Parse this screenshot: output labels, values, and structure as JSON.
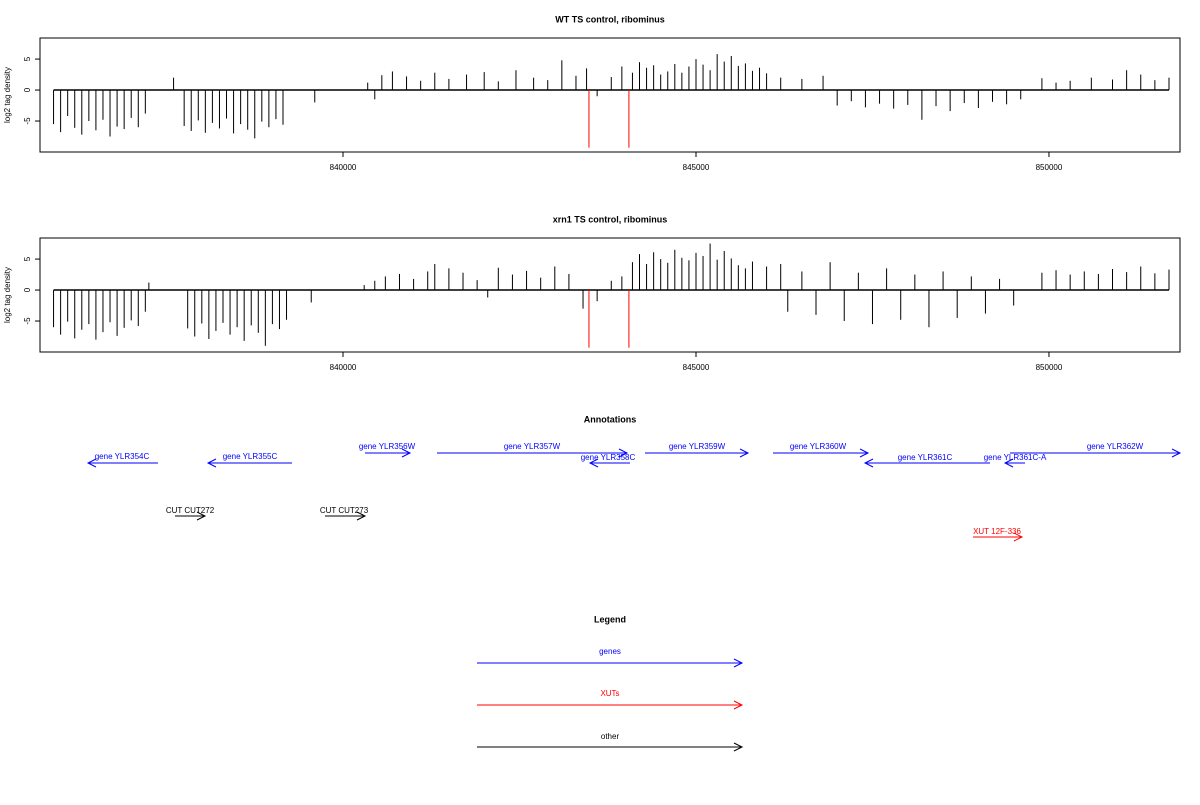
{
  "chart_data": [
    {
      "type": "bar",
      "title": "WT TS control, ribominus",
      "ylabel": "log2 tag density",
      "xlim": [
        835708,
        851856
      ],
      "ylim": [
        -10,
        8.4
      ],
      "xticks": [
        840000,
        845000,
        850000
      ],
      "yticks": [
        -5,
        0,
        5
      ],
      "series": [
        {
          "color": "#000000",
          "x": [
            835900,
            836000,
            836100,
            836200,
            836300,
            836400,
            836500,
            836600,
            836700,
            836800,
            836900,
            837000,
            837100,
            837200,
            837600,
            837750,
            837850,
            837950,
            838050,
            838150,
            838250,
            838350,
            838450,
            838550,
            838650,
            838750,
            838850,
            838950,
            839050,
            839150,
            839600,
            840350,
            840450,
            840550,
            840700,
            840900,
            841100,
            841300,
            841500,
            841750,
            842000,
            842200,
            842450,
            842700,
            842900,
            843100,
            843300,
            843450,
            843600,
            843800,
            843950,
            844100,
            844200,
            844300,
            844400,
            844500,
            844600,
            844700,
            844800,
            844900,
            845000,
            845100,
            845200,
            845300,
            845400,
            845500,
            845600,
            845700,
            845800,
            845900,
            846000,
            846200,
            846500,
            846800,
            847000,
            847200,
            847400,
            847600,
            847800,
            848000,
            848200,
            848400,
            848600,
            848800,
            849000,
            849200,
            849400,
            849600,
            849900,
            850100,
            850300,
            850600,
            850900,
            851100,
            851300,
            851500,
            851700
          ],
          "values": [
            -5.5,
            -6.8,
            -4.2,
            -6.1,
            -7.2,
            -5.0,
            -6.5,
            -4.8,
            -7.5,
            -5.9,
            -6.3,
            -4.5,
            -6.0,
            -3.8,
            2.0,
            -5.8,
            -6.6,
            -4.9,
            -6.9,
            -5.3,
            -6.2,
            -4.6,
            -7.0,
            -5.5,
            -6.4,
            -7.8,
            -5.1,
            -6.0,
            -4.7,
            -5.6,
            -2.0,
            1.2,
            -1.5,
            2.4,
            3.0,
            2.2,
            1.5,
            2.8,
            1.8,
            2.5,
            2.9,
            1.4,
            3.2,
            2.0,
            1.6,
            4.8,
            2.3,
            3.5,
            -1.0,
            2.1,
            3.8,
            2.8,
            4.5,
            3.6,
            4.0,
            2.5,
            3.0,
            4.2,
            2.8,
            3.8,
            5.0,
            4.1,
            3.2,
            5.8,
            4.6,
            5.5,
            3.9,
            4.3,
            3.1,
            3.6,
            2.7,
            2.0,
            1.8,
            2.3,
            -2.5,
            -1.8,
            -2.8,
            -2.2,
            -3.0,
            -2.4,
            -4.8,
            -2.6,
            -3.4,
            -2.1,
            -2.9,
            -1.9,
            -2.3,
            -1.5,
            1.9,
            1.2,
            1.5,
            2.0,
            1.7,
            3.2,
            2.5,
            1.6,
            2.0
          ]
        },
        {
          "color": "#ff0000",
          "x": [
            843484,
            844050
          ],
          "values": [
            -9.3,
            -9.3
          ]
        }
      ]
    },
    {
      "type": "bar",
      "title": "xrn1 TS control, ribominus",
      "ylabel": "log2 tag density",
      "xlim": [
        835708,
        851856
      ],
      "ylim": [
        -10,
        8.4
      ],
      "xticks": [
        840000,
        845000,
        850000
      ],
      "yticks": [
        -5,
        0,
        5
      ],
      "series": [
        {
          "color": "#000000",
          "x": [
            835900,
            836000,
            836100,
            836200,
            836300,
            836400,
            836500,
            836600,
            836700,
            836800,
            836900,
            837000,
            837100,
            837200,
            837250,
            837800,
            837900,
            838000,
            838100,
            838200,
            838300,
            838400,
            838500,
            838600,
            838700,
            838800,
            838900,
            839000,
            839100,
            839200,
            839550,
            840300,
            840450,
            840600,
            840800,
            841000,
            841200,
            841300,
            841500,
            841700,
            841900,
            842050,
            842200,
            842400,
            842600,
            842800,
            843000,
            843200,
            843400,
            843600,
            843800,
            843950,
            844100,
            844200,
            844300,
            844400,
            844500,
            844600,
            844700,
            844800,
            844900,
            845000,
            845100,
            845200,
            845300,
            845400,
            845500,
            845600,
            845700,
            845800,
            846000,
            846200,
            846300,
            846500,
            846700,
            846900,
            847100,
            847300,
            847500,
            847700,
            847900,
            848100,
            848300,
            848500,
            848700,
            848900,
            849100,
            849300,
            849500,
            849900,
            850100,
            850300,
            850500,
            850700,
            850900,
            851100,
            851300,
            851500,
            851700
          ],
          "values": [
            -6.0,
            -7.2,
            -5.1,
            -7.8,
            -6.4,
            -5.5,
            -8.0,
            -6.8,
            -5.2,
            -7.4,
            -6.1,
            -4.9,
            -5.8,
            -3.5,
            1.2,
            -6.2,
            -7.5,
            -5.4,
            -7.9,
            -6.6,
            -5.3,
            -7.2,
            -6.0,
            -8.2,
            -5.7,
            -6.9,
            -9.0,
            -5.5,
            -6.3,
            -4.8,
            -2.0,
            0.8,
            1.5,
            2.2,
            2.6,
            1.8,
            3.0,
            4.2,
            3.5,
            2.8,
            1.6,
            -1.2,
            3.6,
            2.5,
            3.1,
            2.0,
            3.8,
            2.6,
            -3.0,
            -1.8,
            1.5,
            2.2,
            4.5,
            5.8,
            4.2,
            6.1,
            5.0,
            4.4,
            6.5,
            5.2,
            4.8,
            6.0,
            5.5,
            7.5,
            4.9,
            6.3,
            5.1,
            4.0,
            3.5,
            4.6,
            3.8,
            4.2,
            -3.5,
            3.0,
            -4.0,
            4.5,
            -5.0,
            2.8,
            -5.5,
            3.5,
            -4.8,
            2.5,
            -6.0,
            3.0,
            -4.5,
            2.2,
            -3.8,
            1.8,
            -2.5,
            2.8,
            3.2,
            2.5,
            3.0,
            2.6,
            3.4,
            2.9,
            3.8,
            2.7,
            3.3
          ]
        },
        {
          "color": "#ff0000",
          "x": [
            843484,
            844050
          ],
          "values": [
            -9.3,
            -9.3
          ]
        }
      ]
    }
  ],
  "annotations": {
    "title": "Annotations",
    "genes": [
      "gene YLR354C",
      "gene YLR355C",
      "gene YLR356W",
      "gene YLR357W",
      "gene YLR358C",
      "gene YLR359W",
      "gene YLR360W",
      "gene YLR361C",
      "gene YLR361C-A",
      "gene YLR362W"
    ],
    "cuts": [
      "CUT CUT272",
      "CUT CUT273"
    ],
    "xuts": [
      "XUT 12F-336"
    ]
  },
  "legend": {
    "title": "Legend",
    "items": [
      "genes",
      "XUTs",
      "other"
    ]
  }
}
